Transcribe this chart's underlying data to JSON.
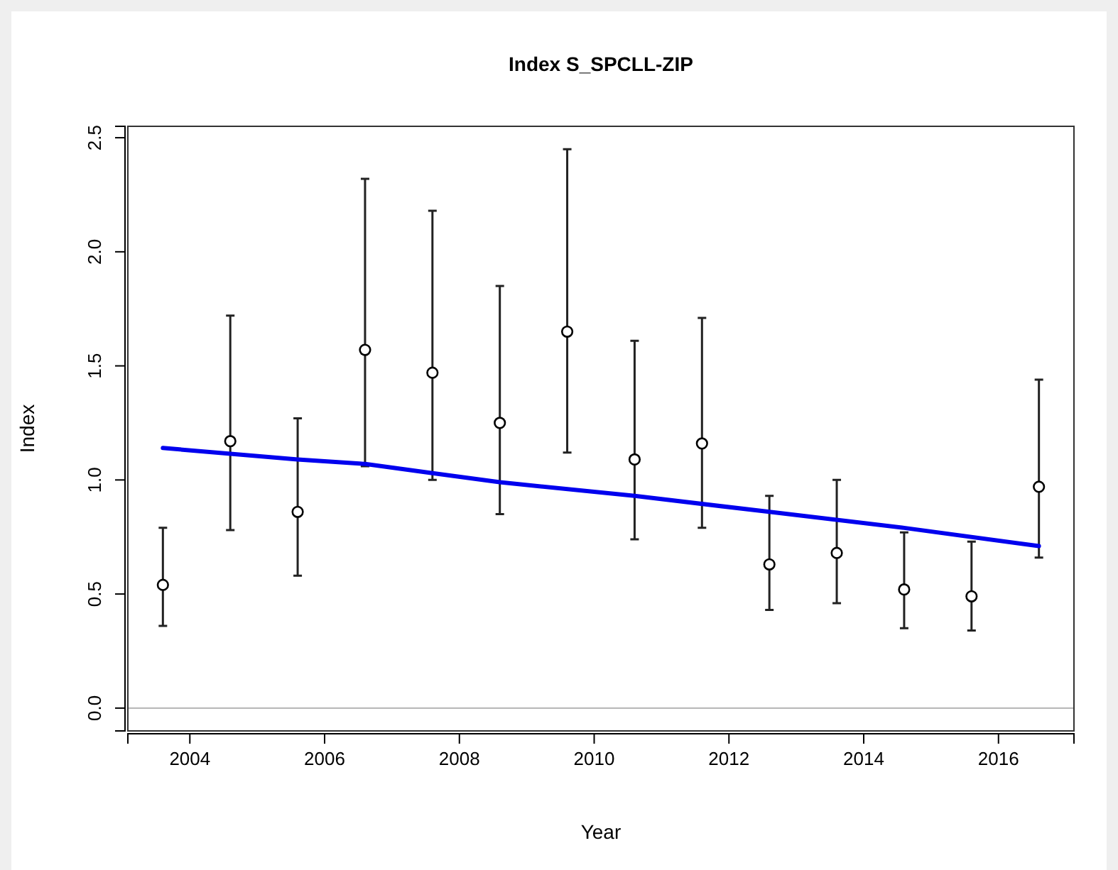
{
  "chart_data": {
    "type": "scatter",
    "title": "Index S_SPCLL-ZIP",
    "xlabel": "Year",
    "ylabel": "Index",
    "xlim": [
      2003.08,
      2017.12
    ],
    "xticks": [
      2004,
      2006,
      2008,
      2010,
      2012,
      2014,
      2016
    ],
    "ylim": [
      -0.1,
      2.55
    ],
    "yticks": [
      {
        "value": 0,
        "label": "0.0"
      },
      {
        "value": 0.5,
        "label": "0.5"
      },
      {
        "value": 1,
        "label": "1.0"
      },
      {
        "value": 1.5,
        "label": "1.5"
      },
      {
        "value": 2,
        "label": "2.0"
      },
      {
        "value": 2.5,
        "label": "2.5"
      }
    ],
    "grid": false,
    "marker": "circle",
    "ref_lines": [
      {
        "axis": "y",
        "value": 0,
        "color": "#bbbbbb"
      }
    ],
    "series": [
      {
        "color": "#000000",
        "x": [
          2003.6,
          2004.6,
          2005.6,
          2006.6,
          2007.6,
          2008.6,
          2009.6,
          2010.6,
          2011.6,
          2012.6,
          2013.6,
          2014.6,
          2015.6,
          2016.6
        ],
        "values": [
          0.54,
          1.17,
          0.86,
          1.57,
          1.47,
          1.25,
          1.65,
          1.09,
          1.16,
          0.63,
          0.68,
          0.52,
          0.49,
          0.97
        ],
        "errors": [
          [
            0.36,
            0.79
          ],
          [
            0.78,
            1.72
          ],
          [
            0.58,
            1.27
          ],
          [
            1.06,
            2.32
          ],
          [
            1.0,
            2.18
          ],
          [
            0.85,
            1.85
          ],
          [
            1.12,
            2.45
          ],
          [
            0.74,
            1.61
          ],
          [
            0.79,
            1.71
          ],
          [
            0.43,
            0.93
          ],
          [
            0.46,
            1.0
          ],
          [
            0.35,
            0.77
          ],
          [
            0.34,
            0.73
          ],
          [
            0.66,
            1.44
          ]
        ]
      },
      {
        "type": "line",
        "color": "#0000ee",
        "line_style": "solid",
        "marker": "none",
        "x": [
          2003.6,
          2005.6,
          2006.6,
          2007.6,
          2008.6,
          2010.6,
          2012.6,
          2014.6,
          2016.6
        ],
        "values": [
          1.14,
          1.09,
          1.07,
          1.03,
          0.99,
          0.93,
          0.86,
          0.79,
          0.71
        ]
      }
    ]
  }
}
